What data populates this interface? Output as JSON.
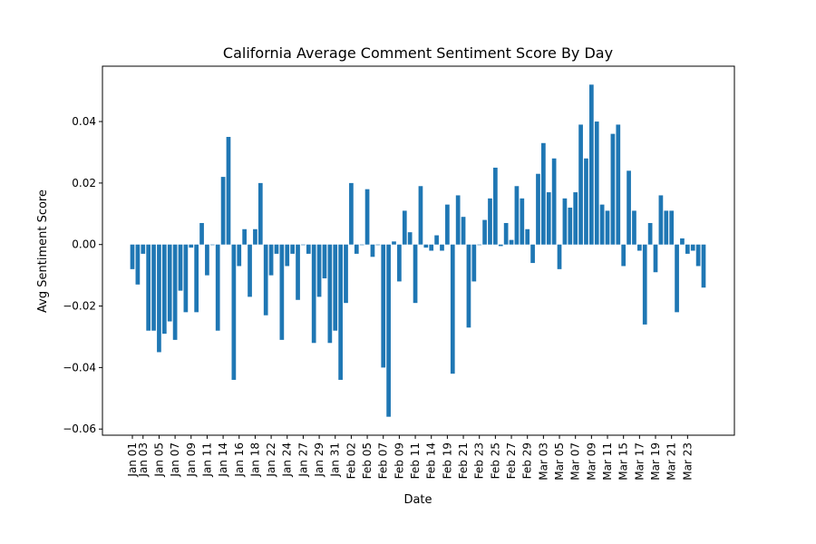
{
  "chart_data": {
    "type": "bar",
    "title": "California Average Comment Sentiment Score By Day",
    "xlabel": "Date",
    "ylabel": "Avg Sentiment Score",
    "ylim": [
      -0.062,
      0.058
    ],
    "yticks": [
      -0.06,
      -0.04,
      -0.02,
      0.0,
      0.02,
      0.04
    ],
    "ytick_labels": [
      "−0.06",
      "−0.04",
      "−0.02",
      "0.00",
      "0.02",
      "0.04"
    ],
    "xtick_labels": [
      "Jan 01",
      "Jan 03",
      "Jan 05",
      "Jan 07",
      "Jan 09",
      "Jan 11",
      "Jan 14",
      "Jan 16",
      "Jan 18",
      "Jan 22",
      "Jan 24",
      "Jan 27",
      "Jan 29",
      "Jan 31",
      "Feb 02",
      "Feb 05",
      "Feb 07",
      "Feb 09",
      "Feb 11",
      "Feb 14",
      "Feb 19",
      "Feb 21",
      "Feb 23",
      "Feb 25",
      "Feb 27",
      "Feb 29",
      "Mar 03",
      "Mar 05",
      "Mar 07",
      "Mar 09",
      "Mar 11",
      "Mar 15",
      "Mar 17",
      "Mar 19",
      "Mar 21",
      "Mar 23"
    ],
    "xtick_index": [
      0,
      2,
      5,
      8,
      11,
      14,
      17,
      20,
      23,
      26,
      29,
      32,
      35,
      38,
      41,
      44,
      47,
      50,
      53,
      56,
      59,
      62,
      65,
      68,
      71,
      74,
      77,
      80,
      83,
      86,
      89,
      92,
      95,
      98,
      101,
      104
    ],
    "grid": false,
    "values": [
      -0.008,
      -0.013,
      -0.003,
      -0.028,
      -0.028,
      -0.035,
      -0.029,
      -0.025,
      -0.031,
      -0.015,
      -0.022,
      -0.001,
      -0.022,
      0.007,
      -0.01,
      0.0,
      -0.028,
      0.022,
      0.035,
      -0.044,
      -0.007,
      0.005,
      -0.017,
      0.005,
      0.02,
      -0.023,
      -0.01,
      -0.003,
      -0.031,
      -0.007,
      -0.003,
      -0.018,
      0.0,
      -0.003,
      -0.032,
      -0.017,
      -0.011,
      -0.032,
      -0.028,
      -0.044,
      -0.019,
      0.02,
      -0.003,
      0.0,
      0.018,
      -0.004,
      0.0,
      -0.04,
      -0.056,
      0.001,
      -0.012,
      0.011,
      0.004,
      -0.019,
      0.019,
      -0.001,
      -0.002,
      0.003,
      -0.002,
      0.013,
      -0.042,
      0.016,
      0.009,
      -0.027,
      -0.012,
      0.0,
      0.008,
      0.015,
      0.025,
      -0.0005,
      0.007,
      0.0015,
      0.019,
      0.015,
      0.005,
      -0.006,
      0.023,
      0.033,
      0.017,
      0.028,
      -0.008,
      0.015,
      0.012,
      0.017,
      0.039,
      0.028,
      0.052,
      0.04,
      0.013,
      0.011,
      0.036,
      0.039,
      -0.007,
      0.024,
      0.011,
      -0.002,
      -0.026,
      0.007,
      -0.009,
      0.016,
      0.011,
      0.011,
      -0.022,
      0.002,
      -0.003,
      -0.002,
      -0.007,
      -0.014
    ]
  }
}
